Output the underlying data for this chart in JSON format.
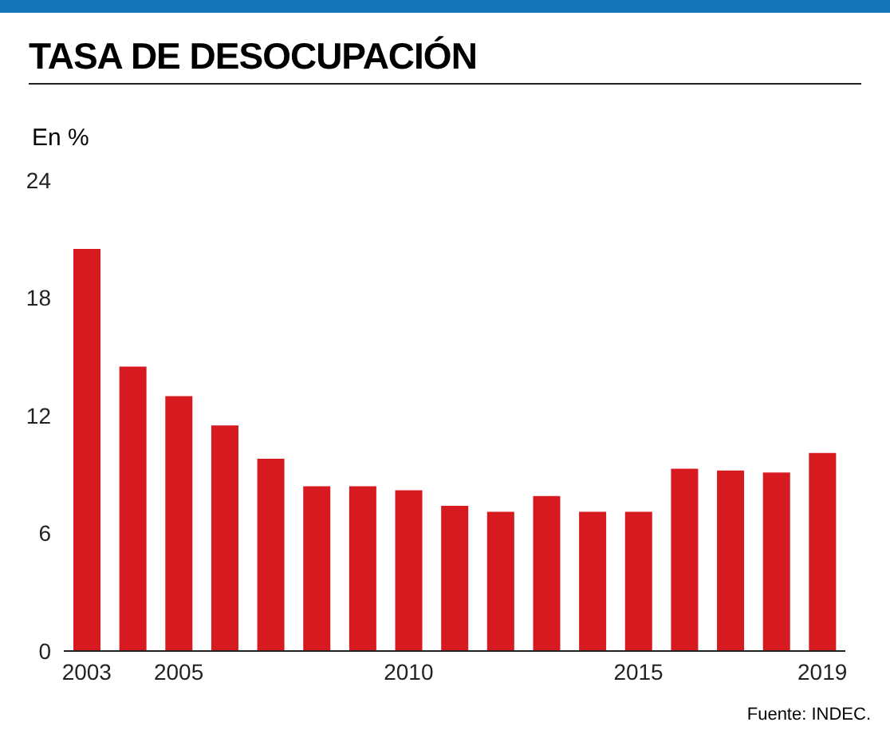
{
  "chart_data": {
    "type": "bar",
    "title": "TASA DE DESOCUPACIÓN",
    "ylabel": "En %",
    "categories": [
      "2003",
      null,
      "2005",
      null,
      null,
      null,
      null,
      "2010",
      null,
      null,
      null,
      null,
      "2015",
      null,
      null,
      null,
      "2019"
    ],
    "values": [
      20.5,
      14.5,
      13.0,
      11.5,
      9.8,
      8.4,
      8.4,
      8.2,
      7.4,
      7.1,
      7.9,
      7.1,
      7.1,
      9.3,
      9.2,
      9.1,
      10.1
    ],
    "color": "#d71920",
    "ylim": [
      0,
      24
    ],
    "yticks": [
      0,
      6,
      12,
      18,
      24
    ],
    "grid": false,
    "annotations": [
      "Fuente: INDEC."
    ]
  }
}
